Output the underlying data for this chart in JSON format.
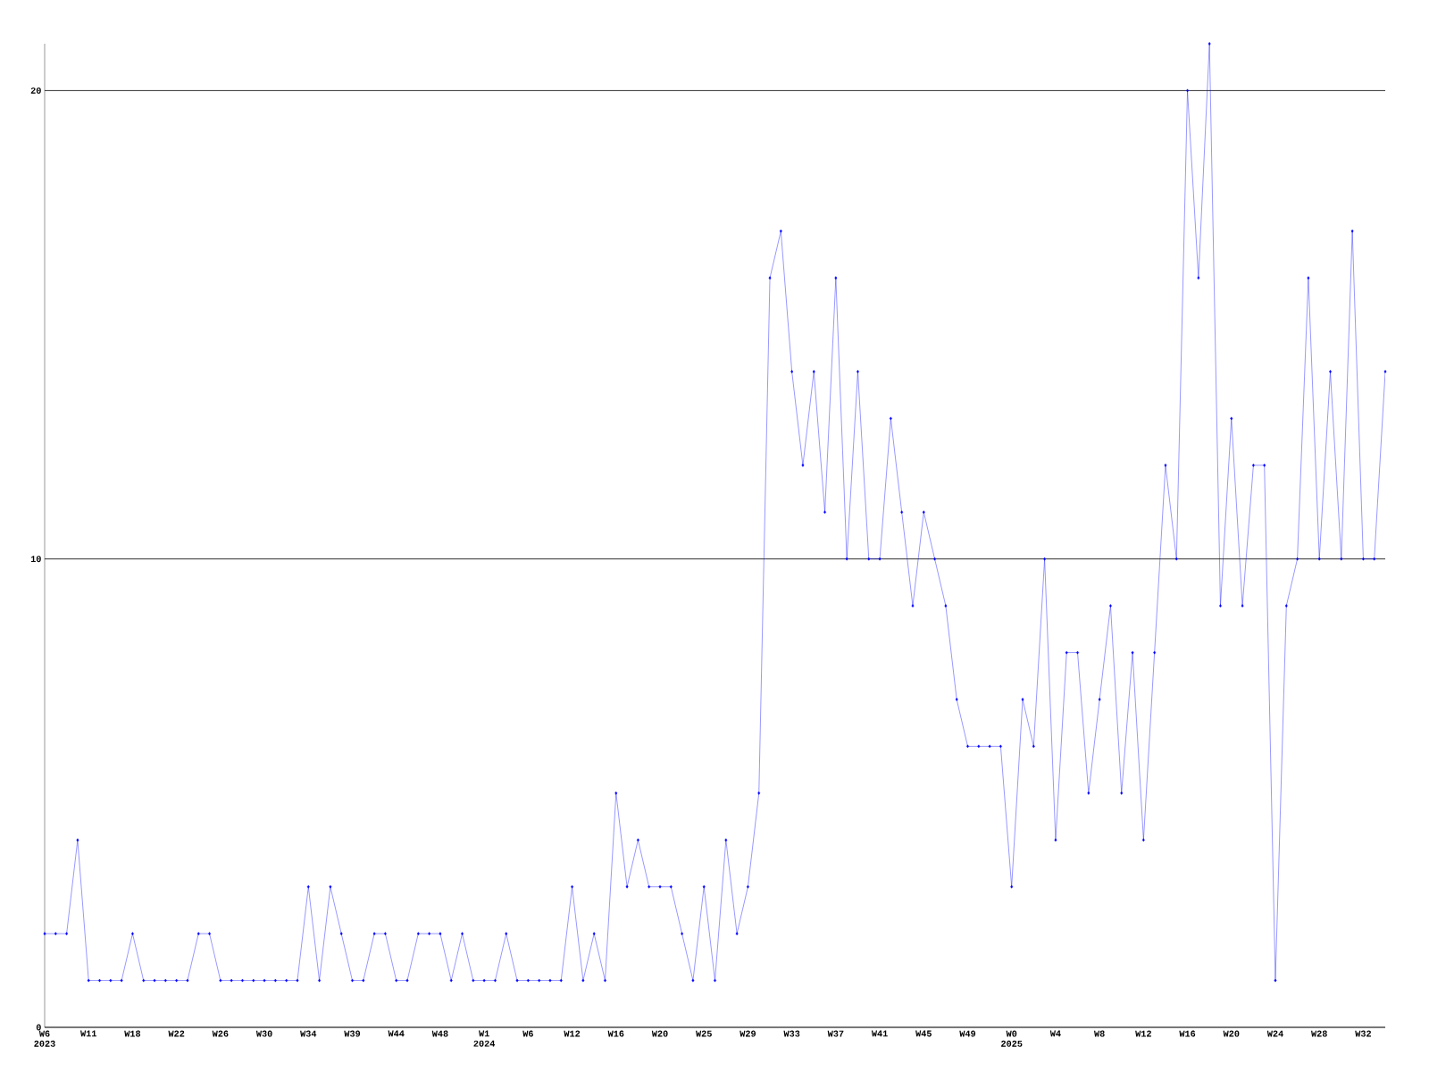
{
  "chart_data": {
    "type": "line",
    "categories": [
      "W6 2023",
      null,
      null,
      null,
      "W11",
      null,
      null,
      null,
      "W18",
      null,
      null,
      null,
      "W22",
      null,
      null,
      null,
      "W26",
      null,
      null,
      null,
      "W30",
      null,
      null,
      null,
      "W34",
      null,
      null,
      null,
      "W39",
      null,
      null,
      null,
      "W44",
      null,
      null,
      null,
      "W48",
      null,
      null,
      null,
      "W1 2024",
      null,
      null,
      null,
      "W6",
      null,
      null,
      null,
      "W12",
      null,
      null,
      null,
      "W16",
      null,
      null,
      null,
      "W20",
      null,
      null,
      null,
      "W25",
      null,
      null,
      null,
      "W29",
      null,
      null,
      null,
      "W33",
      null,
      null,
      null,
      "W37",
      null,
      null,
      null,
      "W41",
      null,
      null,
      null,
      "W45",
      null,
      null,
      null,
      "W49",
      null,
      null,
      null,
      "W0 2025",
      null,
      null,
      null,
      "W4",
      null,
      null,
      null,
      "W8",
      null,
      null,
      null,
      "W12",
      null,
      null,
      null,
      "W16",
      null,
      null,
      null,
      "W20",
      null,
      null,
      null,
      "W24",
      null,
      null,
      null,
      "W28",
      null,
      null,
      null,
      "W32",
      null,
      null
    ],
    "values": [
      2,
      2,
      2,
      4,
      1,
      1,
      1,
      1,
      2,
      1,
      1,
      1,
      1,
      1,
      2,
      2,
      1,
      1,
      1,
      1,
      1,
      1,
      1,
      1,
      3,
      1,
      3,
      2,
      1,
      1,
      2,
      2,
      1,
      1,
      2,
      2,
      2,
      1,
      2,
      1,
      1,
      1,
      2,
      1,
      1,
      1,
      1,
      1,
      3,
      1,
      2,
      1,
      5,
      3,
      4,
      3,
      3,
      3,
      2,
      1,
      3,
      1,
      4,
      2,
      3,
      5,
      16,
      17,
      14,
      12,
      14,
      11,
      16,
      10,
      14,
      10,
      10,
      13,
      11,
      9,
      11,
      10,
      9,
      7,
      6,
      6,
      6,
      6,
      3,
      7,
      6,
      10,
      4,
      8,
      8,
      5,
      7,
      9,
      5,
      8,
      4,
      8,
      12,
      10,
      20,
      16,
      21,
      9,
      13,
      9,
      12,
      12,
      1,
      9,
      10,
      16,
      10,
      14,
      10,
      17,
      10,
      10,
      14
    ],
    "color": "#0000ff",
    "ylim": [
      0,
      21
    ],
    "yticks": [
      0,
      10,
      20
    ],
    "grid": "y",
    "marker": "diamond",
    "line_style": "solid"
  }
}
